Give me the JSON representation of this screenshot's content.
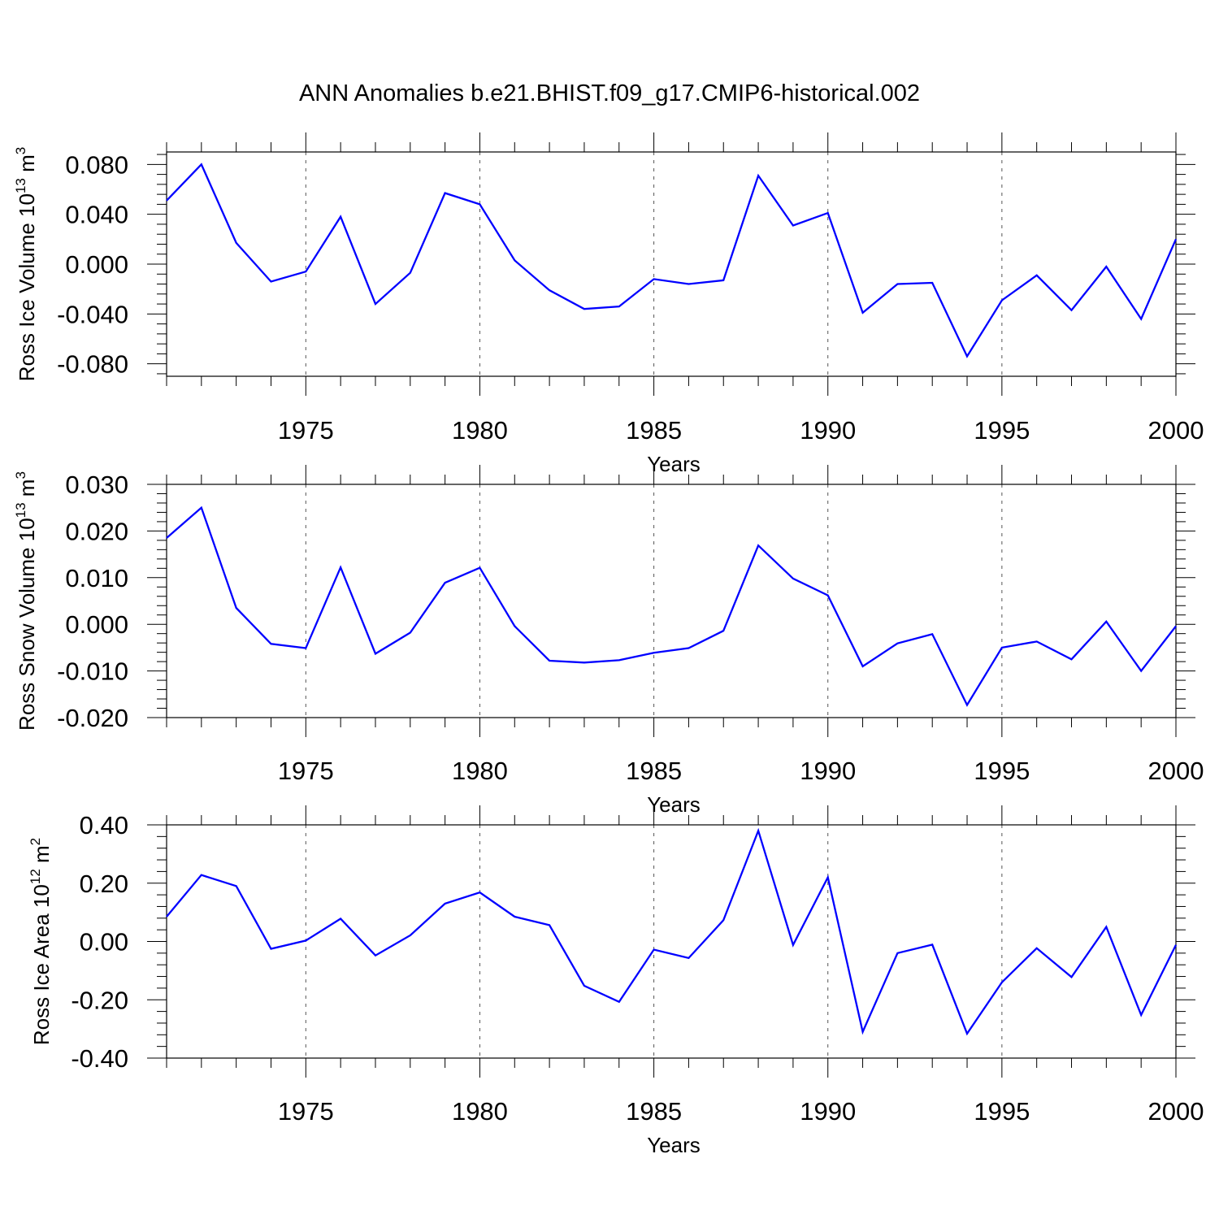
{
  "title": "ANN Anomalies b.e21.BHIST.f09_g17.CMIP6-historical.002",
  "chart_data": [
    {
      "type": "line",
      "ylabel": {
        "text": "Ross Ice Volume 10",
        "exp": "13",
        "unit": " m",
        "unit_exp": "3"
      },
      "xlabel": "Years",
      "xlim": [
        1971,
        2000
      ],
      "ylim": [
        -0.09,
        0.09
      ],
      "x_ticks": [
        1975,
        1980,
        1985,
        1990,
        1995,
        2000
      ],
      "x_tick_labels": [
        "1975",
        "1980",
        "1985",
        "1990",
        "1995",
        "2000"
      ],
      "y_ticks": [
        0.08,
        0.04,
        0.0,
        -0.04,
        -0.08
      ],
      "y_tick_labels": [
        "0.080",
        "0.040",
        "0.000",
        "-0.040",
        "-0.080"
      ],
      "grid": "vertical dashed at major x ticks",
      "color": "#0000ff",
      "x": [
        1971,
        1972,
        1973,
        1974,
        1975,
        1976,
        1977,
        1978,
        1979,
        1980,
        1981,
        1982,
        1983,
        1984,
        1985,
        1986,
        1987,
        1988,
        1989,
        1990,
        1991,
        1992,
        1993,
        1994,
        1995,
        1996,
        1997,
        1998,
        1999,
        2000
      ],
      "values": [
        0.051,
        0.08,
        0.017,
        -0.014,
        -0.006,
        0.038,
        -0.032,
        -0.007,
        0.057,
        0.048,
        0.003,
        -0.021,
        -0.036,
        -0.034,
        -0.012,
        -0.016,
        -0.013,
        0.071,
        0.031,
        0.041,
        -0.039,
        -0.016,
        -0.015,
        -0.074,
        -0.029,
        -0.009,
        -0.037,
        -0.002,
        -0.044,
        0.02
      ]
    },
    {
      "type": "line",
      "ylabel": {
        "text": "Ross Snow Volume 10",
        "exp": "13",
        "unit": " m",
        "unit_exp": "3"
      },
      "xlabel": "Years",
      "xlim": [
        1971,
        2000
      ],
      "ylim": [
        -0.02,
        0.03
      ],
      "x_ticks": [
        1975,
        1980,
        1985,
        1990,
        1995,
        2000
      ],
      "x_tick_labels": [
        "1975",
        "1980",
        "1985",
        "1990",
        "1995",
        "2000"
      ],
      "y_ticks": [
        0.03,
        0.02,
        0.01,
        0.0,
        -0.01,
        -0.02
      ],
      "y_tick_labels": [
        "0.030",
        "0.020",
        "0.010",
        "0.000",
        "-0.010",
        "-0.020"
      ],
      "grid": "vertical dashed at major x ticks",
      "color": "#0000ff",
      "x": [
        1971,
        1972,
        1973,
        1974,
        1975,
        1976,
        1977,
        1978,
        1979,
        1980,
        1981,
        1982,
        1983,
        1984,
        1985,
        1986,
        1987,
        1988,
        1989,
        1990,
        1991,
        1992,
        1993,
        1994,
        1995,
        1996,
        1997,
        1998,
        1999,
        2000
      ],
      "values": [
        0.0185,
        0.025,
        0.0035,
        -0.0042,
        -0.0051,
        0.0122,
        -0.0063,
        -0.0018,
        0.0089,
        0.0121,
        -0.0004,
        -0.0078,
        -0.0082,
        -0.0077,
        -0.0061,
        -0.0051,
        -0.0014,
        0.0169,
        0.0098,
        0.0062,
        -0.009,
        -0.0041,
        -0.0021,
        -0.0173,
        -0.005,
        -0.0037,
        -0.0075,
        0.0006,
        -0.01,
        -0.0004
      ]
    },
    {
      "type": "line",
      "ylabel": {
        "text": "Ross Ice Area 10",
        "exp": "12",
        "unit": " m",
        "unit_exp": "2"
      },
      "xlabel": "Years",
      "xlim": [
        1971,
        2000
      ],
      "ylim": [
        -0.4,
        0.4
      ],
      "x_ticks": [
        1975,
        1980,
        1985,
        1990,
        1995,
        2000
      ],
      "x_tick_labels": [
        "1975",
        "1980",
        "1985",
        "1990",
        "1995",
        "2000"
      ],
      "y_ticks": [
        0.4,
        0.2,
        0.0,
        -0.2,
        -0.4
      ],
      "y_tick_labels": [
        "0.40",
        "0.20",
        "0.00",
        "-0.20",
        "-0.40"
      ],
      "grid": "vertical dashed at major x ticks",
      "color": "#0000ff",
      "x": [
        1971,
        1972,
        1973,
        1974,
        1975,
        1976,
        1977,
        1978,
        1979,
        1980,
        1981,
        1982,
        1983,
        1984,
        1985,
        1986,
        1987,
        1988,
        1989,
        1990,
        1991,
        1992,
        1993,
        1994,
        1995,
        1996,
        1997,
        1998,
        1999,
        2000
      ],
      "values": [
        0.085,
        0.228,
        0.19,
        -0.025,
        0.003,
        0.078,
        -0.048,
        0.021,
        0.13,
        0.168,
        0.085,
        0.056,
        -0.152,
        -0.207,
        -0.028,
        -0.057,
        0.073,
        0.38,
        -0.012,
        0.22,
        -0.31,
        -0.04,
        -0.011,
        -0.316,
        -0.14,
        -0.023,
        -0.122,
        0.05,
        -0.252,
        -0.012
      ]
    }
  ]
}
